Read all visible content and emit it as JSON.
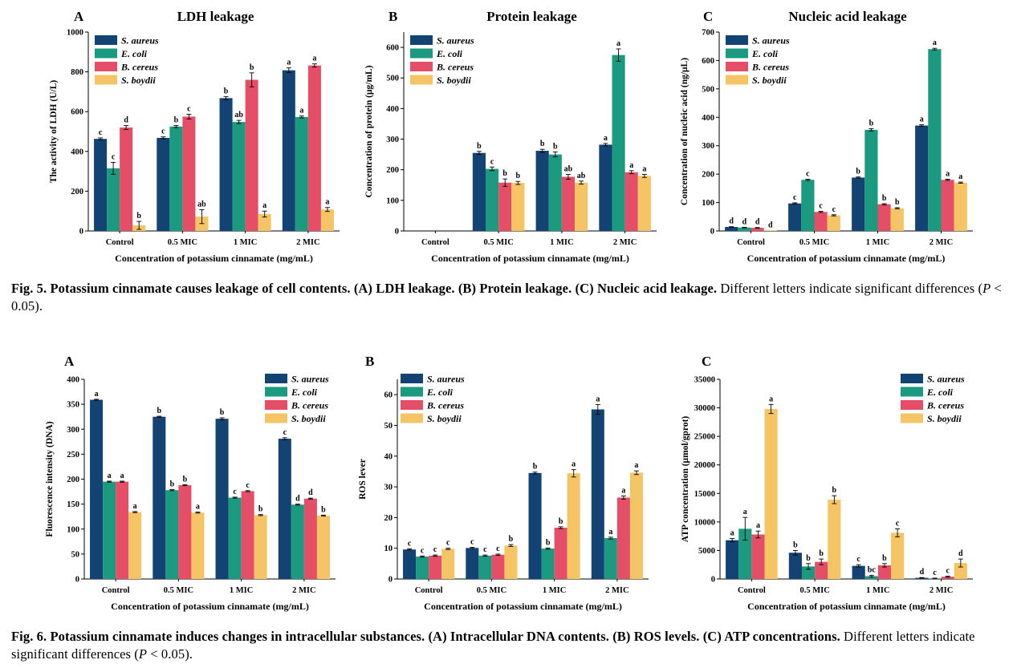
{
  "series_names": [
    "S. aureus",
    "E. coli",
    "B. cereus",
    "S. boydii"
  ],
  "series_colors": [
    "#124372",
    "#1b9a80",
    "#e54e67",
    "#f5c465"
  ],
  "fig5_caption": {
    "label": "Fig. 5.",
    "bold_text": "Potassium cinnamate causes leakage of cell contents. (A) LDH leakage. (B) Protein leakage. (C) Nucleic acid leakage.",
    "rest_before": "Different letters indicate significant differences (",
    "italic": "P",
    "rest_after": " < 0.05)."
  },
  "fig6_caption": {
    "label": "Fig. 6.",
    "bold_text": "Potassium cinnamate induces changes in intracellular substances. (A) Intracellular DNA contents. (B) ROS levels. (C) ATP concentrations.",
    "rest_before": "Different letters indicate significant differences (",
    "italic": "P",
    "rest_after": " < 0.05)."
  },
  "chart_data": [
    {
      "id": "fig5A",
      "type": "bar",
      "panel_label": "A",
      "title": "LDH leakage",
      "xlabel": "Concentration of potassium cinnamate (mg/mL)",
      "ylabel": "The activity of LDH (U/L)",
      "categories": [
        "Control",
        "0.5 MIC",
        "1 MIC",
        "2 MIC"
      ],
      "ylim": [
        0,
        1000
      ],
      "yticks": [
        0,
        200,
        400,
        600,
        800,
        1000
      ],
      "series": [
        {
          "name": "S. aureus",
          "values": [
            463,
            468,
            668,
            808
          ],
          "errors": [
            5,
            5,
            8,
            12
          ],
          "letters": [
            "c",
            "c",
            "b",
            "a"
          ]
        },
        {
          "name": "E. coli",
          "values": [
            315,
            525,
            548,
            573
          ],
          "errors": [
            30,
            5,
            8,
            5
          ],
          "letters": [
            "c",
            "b",
            "ab",
            "a"
          ]
        },
        {
          "name": "B. cereus",
          "values": [
            520,
            575,
            760,
            832
          ],
          "errors": [
            10,
            12,
            35,
            8
          ],
          "letters": [
            "d",
            "c",
            "b",
            "a"
          ]
        },
        {
          "name": "S. boydii",
          "values": [
            28,
            72,
            85,
            108
          ],
          "errors": [
            20,
            35,
            15,
            10
          ],
          "letters": [
            "b",
            "ab",
            "a",
            "a"
          ]
        }
      ]
    },
    {
      "id": "fig5B",
      "type": "bar",
      "panel_label": "B",
      "title": "Protein leakage",
      "xlabel": "Concentration of potassium cinnamate (mg/mL)",
      "ylabel": "Concentration of protein (μg/mL)",
      "categories": [
        "Control",
        "0.5 MIC",
        "1 MIC",
        "2 MIC"
      ],
      "ylim": [
        0,
        650
      ],
      "yticks": [
        0,
        100,
        200,
        300,
        400,
        500,
        600
      ],
      "series": [
        {
          "name": "S. aureus",
          "values": [
            0,
            255,
            262,
            282
          ],
          "errors": [
            0,
            5,
            5,
            4
          ],
          "letters": [
            "",
            "b",
            "b",
            "a"
          ]
        },
        {
          "name": "E. coli",
          "values": [
            0,
            203,
            250,
            575
          ],
          "errors": [
            0,
            6,
            8,
            20
          ],
          "letters": [
            "",
            "c",
            "b",
            "a"
          ]
        },
        {
          "name": "B. cereus",
          "values": [
            0,
            158,
            177,
            192
          ],
          "errors": [
            0,
            12,
            8,
            5
          ],
          "letters": [
            "",
            "b",
            "ab",
            "a"
          ]
        },
        {
          "name": "S. boydii",
          "values": [
            0,
            157,
            158,
            180
          ],
          "errors": [
            0,
            5,
            5,
            5
          ],
          "letters": [
            "",
            "b",
            "ab",
            "a"
          ]
        }
      ]
    },
    {
      "id": "fig5C",
      "type": "bar",
      "panel_label": "C",
      "title": "Nucleic acid leakage",
      "xlabel": "Concentration of potassium cinnamate (mg/mL)",
      "ylabel": "Concentration of nucleic acid (ng/μL)",
      "categories": [
        "Control",
        "0.5 MIC",
        "1 MIC",
        "2 MIC"
      ],
      "ylim": [
        0,
        700
      ],
      "yticks": [
        0,
        100,
        200,
        300,
        400,
        500,
        600,
        700
      ],
      "series": [
        {
          "name": "S. aureus",
          "values": [
            14,
            97,
            188,
            371
          ],
          "errors": [
            1,
            2,
            2,
            3
          ],
          "letters": [
            "d",
            "c",
            "b",
            "a"
          ]
        },
        {
          "name": "E. coli",
          "values": [
            12,
            180,
            356,
            640
          ],
          "errors": [
            1,
            2,
            4,
            3
          ],
          "letters": [
            "d",
            "c",
            "b",
            "a"
          ]
        },
        {
          "name": "B. cereus",
          "values": [
            11,
            67,
            94,
            180
          ],
          "errors": [
            1,
            2,
            2,
            2
          ],
          "letters": [
            "d",
            "c",
            "b",
            "a"
          ]
        },
        {
          "name": "S. boydii",
          "values": [
            2,
            55,
            80,
            170
          ],
          "errors": [
            0,
            2,
            2,
            2
          ],
          "letters": [
            "d",
            "c",
            "b",
            "a"
          ]
        }
      ]
    },
    {
      "id": "fig6A",
      "type": "bar",
      "panel_label": "A",
      "title": "",
      "xlabel": "Concentration of potassium cinnamate (mg/mL)",
      "ylabel": "Fluorescence intensity (DNA)",
      "categories": [
        "Control",
        "0.5 MIC",
        "1 MIC",
        "2 MIC"
      ],
      "ylim": [
        0,
        400
      ],
      "yticks": [
        0,
        50,
        100,
        150,
        200,
        250,
        300,
        350,
        400
      ],
      "series": [
        {
          "name": "S. aureus",
          "values": [
            359,
            325,
            321,
            281
          ],
          "errors": [
            1,
            1,
            2,
            2
          ],
          "letters": [
            "a",
            "b",
            "b",
            "c"
          ]
        },
        {
          "name": "E. coli",
          "values": [
            195,
            178,
            163,
            149
          ],
          "errors": [
            1,
            1,
            1,
            1
          ],
          "letters": [
            "a",
            "b",
            "c",
            "d"
          ]
        },
        {
          "name": "B. cereus",
          "values": [
            195,
            188,
            176,
            161
          ],
          "errors": [
            1,
            1,
            1,
            1
          ],
          "letters": [
            "a",
            "b",
            "c",
            "d"
          ]
        },
        {
          "name": "S. boydii",
          "values": [
            134,
            133,
            128,
            127
          ],
          "errors": [
            1,
            1,
            1,
            1
          ],
          "letters": [
            "a",
            "a",
            "b",
            "b"
          ]
        }
      ]
    },
    {
      "id": "fig6B",
      "type": "bar",
      "panel_label": "B",
      "title": "",
      "xlabel": "Concentration of potassium cinnamate (mg/mL)",
      "ylabel": "ROS lever",
      "categories": [
        "Control",
        "0.5 MIC",
        "1 MIC",
        "2 MIC"
      ],
      "ylim": [
        0,
        65
      ],
      "yticks": [
        0,
        10,
        20,
        30,
        40,
        50,
        60
      ],
      "series": [
        {
          "name": "S. aureus",
          "values": [
            9.6,
            10.1,
            34.5,
            55.2
          ],
          "errors": [
            0.2,
            0.2,
            0.3,
            1.6
          ],
          "letters": [
            "c",
            "c",
            "b",
            "a"
          ]
        },
        {
          "name": "E. coli",
          "values": [
            7.3,
            7.6,
            9.9,
            13.3
          ],
          "errors": [
            0.2,
            0.2,
            0.2,
            0.3
          ],
          "letters": [
            "c",
            "c",
            "b",
            "a"
          ]
        },
        {
          "name": "B. cereus",
          "values": [
            7.6,
            7.9,
            16.7,
            26.5
          ],
          "errors": [
            0.2,
            0.2,
            0.3,
            0.5
          ],
          "letters": [
            "c",
            "c",
            "b",
            "a"
          ]
        },
        {
          "name": "S. boydii",
          "values": [
            9.8,
            10.9,
            34.4,
            34.6
          ],
          "errors": [
            0.2,
            0.3,
            1.2,
            0.6
          ],
          "letters": [
            "c",
            "b",
            "a",
            "a"
          ]
        }
      ]
    },
    {
      "id": "fig6C",
      "type": "bar",
      "panel_label": "C",
      "title": "",
      "xlabel": "Concentration of potassium cinnamate (mg/mL)",
      "ylabel": "ATP concentration (μmol/gprot)",
      "categories": [
        "Control",
        "0.5 MIC",
        "1 MIC",
        "2 MIC"
      ],
      "ylim": [
        0,
        35000
      ],
      "yticks": [
        0,
        5000,
        10000,
        15000,
        20000,
        25000,
        30000,
        35000
      ],
      "series": [
        {
          "name": "S. aureus",
          "values": [
            6800,
            4600,
            2300,
            200
          ],
          "errors": [
            300,
            400,
            200,
            50
          ],
          "letters": [
            "a",
            "b",
            "c",
            "d"
          ]
        },
        {
          "name": "E. coli",
          "values": [
            8800,
            2200,
            500,
            100
          ],
          "errors": [
            2000,
            500,
            150,
            50
          ],
          "letters": [
            "a",
            "b",
            "bc",
            "c"
          ]
        },
        {
          "name": "B. cereus",
          "values": [
            7800,
            3000,
            2400,
            400
          ],
          "errors": [
            600,
            500,
            300,
            100
          ],
          "letters": [
            "a",
            "b",
            "b",
            "c"
          ]
        },
        {
          "name": "S. boydii",
          "values": [
            29800,
            13900,
            8100,
            2800
          ],
          "errors": [
            800,
            700,
            700,
            700
          ],
          "letters": [
            "a",
            "b",
            "c",
            "d"
          ]
        }
      ]
    }
  ]
}
